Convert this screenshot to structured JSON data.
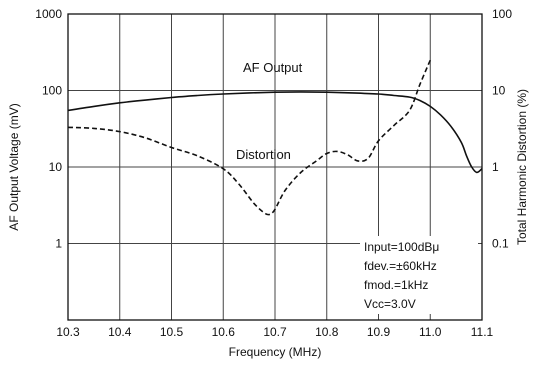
{
  "chart_data": {
    "type": "line",
    "xlabel": "Frequency (MHz)",
    "ylabel_left": "AF Output Voltage (mV)",
    "ylabel_right": "Total Harmonic Distortion (%)",
    "x_ticks": [
      "10.3",
      "10.4",
      "10.5",
      "10.6",
      "10.7",
      "10.8",
      "10.9",
      "11.0",
      "11.1"
    ],
    "xlim": [
      10.3,
      11.1
    ],
    "y_left_ticks": [
      "1000",
      "100",
      "10",
      "1"
    ],
    "y_right_ticks": [
      "100",
      "10",
      "1",
      "0.1"
    ],
    "ylim_left": [
      0.1,
      1000
    ],
    "ylim_right": [
      0.01,
      100
    ],
    "y_scale": "log",
    "grid": true,
    "series": [
      {
        "name": "AF Output",
        "axis": "left",
        "style": "solid",
        "x": [
          10.3,
          10.35,
          10.4,
          10.45,
          10.5,
          10.55,
          10.6,
          10.65,
          10.7,
          10.75,
          10.8,
          10.85,
          10.9,
          10.93,
          10.96,
          10.98,
          11.0,
          11.02,
          11.04,
          11.06,
          11.07,
          11.08,
          11.09,
          11.1
        ],
        "values": [
          55,
          62,
          69,
          75,
          81,
          86,
          90,
          93,
          95,
          96,
          95,
          93,
          90,
          86,
          82,
          74,
          62,
          48,
          34,
          21,
          14,
          10,
          8.5,
          9.5
        ]
      },
      {
        "name": "Distortion",
        "axis": "right",
        "style": "dashed",
        "x": [
          10.3,
          10.35,
          10.4,
          10.45,
          10.5,
          10.55,
          10.6,
          10.63,
          10.66,
          10.68,
          10.69,
          10.7,
          10.72,
          10.75,
          10.78,
          10.8,
          10.82,
          10.84,
          10.86,
          10.88,
          10.9,
          10.93,
          10.96,
          10.98,
          11.0
        ],
        "values": [
          3.3,
          3.2,
          2.9,
          2.4,
          1.8,
          1.4,
          0.95,
          0.6,
          0.33,
          0.25,
          0.24,
          0.28,
          0.5,
          0.85,
          1.2,
          1.5,
          1.6,
          1.45,
          1.2,
          1.3,
          2.2,
          3.5,
          5.5,
          12,
          25
        ]
      }
    ],
    "series_labels": [
      "AF Output",
      "Distortion"
    ],
    "annotations": [
      "Input=100dBμ",
      "fdev.=±60kHz",
      "fmod.=1kHz",
      "Vcc=3.0V"
    ]
  }
}
